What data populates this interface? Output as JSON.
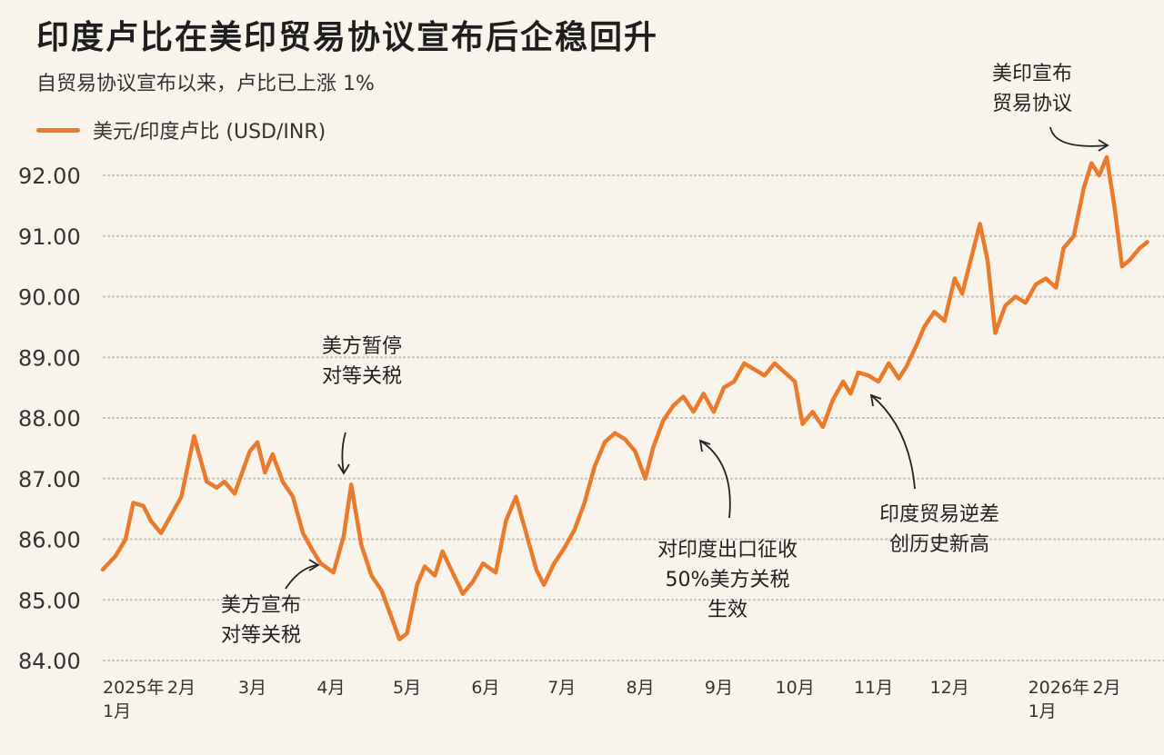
{
  "title": "印度卢比在美印贸易协议宣布后企稳回升",
  "subtitle": "自贸易协议宣布以来，卢比已上涨 1%",
  "colors": {
    "series": "#ea7b2c",
    "grid": "#c9c5bd",
    "background": "#f8f4ec",
    "text": "#222222"
  },
  "chart_data": {
    "type": "line",
    "title": "印度卢比在美印贸易协议宣布后企稳回升",
    "subtitle": "自贸易协议宣布以来，卢比已上涨 1%",
    "legend": {
      "placement": "top-left",
      "entries": [
        "美元/印度卢比 (USD/INR)"
      ]
    },
    "grid": "horizontal",
    "ylim": [
      84.0,
      92.0
    ],
    "yticks": [
      84.0,
      85.0,
      86.0,
      87.0,
      88.0,
      89.0,
      90.0,
      91.0,
      92.0
    ],
    "ytick_labels": [
      "84.00",
      "85.00",
      "86.00",
      "87.00",
      "88.00",
      "89.00",
      "90.00",
      "91.00",
      "92.00"
    ],
    "xlim": [
      "2025-01-01",
      "2026-02-20"
    ],
    "xticks": [
      {
        "date": "2025-01-01",
        "label": [
          "2025年",
          "1月"
        ]
      },
      {
        "date": "2025-02-01",
        "label": [
          "2月"
        ]
      },
      {
        "date": "2025-03-01",
        "label": [
          "3月"
        ]
      },
      {
        "date": "2025-04-01",
        "label": [
          "4月"
        ]
      },
      {
        "date": "2025-05-01",
        "label": [
          "5月"
        ]
      },
      {
        "date": "2025-06-01",
        "label": [
          "6月"
        ]
      },
      {
        "date": "2025-07-01",
        "label": [
          "7月"
        ]
      },
      {
        "date": "2025-08-01",
        "label": [
          "8月"
        ]
      },
      {
        "date": "2025-09-01",
        "label": [
          "9月"
        ]
      },
      {
        "date": "2025-10-01",
        "label": [
          "10月"
        ]
      },
      {
        "date": "2025-11-01",
        "label": [
          "11月"
        ]
      },
      {
        "date": "2025-12-01",
        "label": [
          "12月"
        ]
      },
      {
        "date": "2026-01-01",
        "label": [
          "2026年",
          "1月"
        ]
      },
      {
        "date": "2026-02-01",
        "label": [
          "2月"
        ]
      }
    ],
    "series": [
      {
        "name": "美元/印度卢比 (USD/INR)",
        "points": [
          [
            "2025-01-01",
            85.5
          ],
          [
            "2025-01-06",
            85.72
          ],
          [
            "2025-01-10",
            86.0
          ],
          [
            "2025-01-13",
            86.6
          ],
          [
            "2025-01-17",
            86.55
          ],
          [
            "2025-01-20",
            86.3
          ],
          [
            "2025-01-24",
            86.1
          ],
          [
            "2025-01-28",
            86.4
          ],
          [
            "2025-02-01",
            86.7
          ],
          [
            "2025-02-06",
            87.7
          ],
          [
            "2025-02-08",
            87.4
          ],
          [
            "2025-02-11",
            86.95
          ],
          [
            "2025-02-15",
            86.85
          ],
          [
            "2025-02-18",
            86.95
          ],
          [
            "2025-02-22",
            86.75
          ],
          [
            "2025-02-25",
            87.1
          ],
          [
            "2025-02-28",
            87.45
          ],
          [
            "2025-03-03",
            87.6
          ],
          [
            "2025-03-06",
            87.1
          ],
          [
            "2025-03-09",
            87.4
          ],
          [
            "2025-03-13",
            86.95
          ],
          [
            "2025-03-17",
            86.7
          ],
          [
            "2025-03-21",
            86.1
          ],
          [
            "2025-03-25",
            85.8
          ],
          [
            "2025-03-28",
            85.6
          ],
          [
            "2025-04-02",
            85.45
          ],
          [
            "2025-04-06",
            86.05
          ],
          [
            "2025-04-09",
            86.9
          ],
          [
            "2025-04-13",
            85.9
          ],
          [
            "2025-04-17",
            85.4
          ],
          [
            "2025-04-21",
            85.15
          ],
          [
            "2025-04-25",
            84.7
          ],
          [
            "2025-04-28",
            84.35
          ],
          [
            "2025-05-01",
            84.45
          ],
          [
            "2025-05-05",
            85.25
          ],
          [
            "2025-05-08",
            85.55
          ],
          [
            "2025-05-12",
            85.4
          ],
          [
            "2025-05-15",
            85.8
          ],
          [
            "2025-05-19",
            85.45
          ],
          [
            "2025-05-23",
            85.1
          ],
          [
            "2025-05-27",
            85.3
          ],
          [
            "2025-05-31",
            85.6
          ],
          [
            "2025-06-05",
            85.45
          ],
          [
            "2025-06-09",
            86.3
          ],
          [
            "2025-06-13",
            86.7
          ],
          [
            "2025-06-17",
            86.1
          ],
          [
            "2025-06-21",
            85.5
          ],
          [
            "2025-06-24",
            85.25
          ],
          [
            "2025-06-28",
            85.6
          ],
          [
            "2025-07-02",
            85.85
          ],
          [
            "2025-07-06",
            86.15
          ],
          [
            "2025-07-10",
            86.6
          ],
          [
            "2025-07-14",
            87.2
          ],
          [
            "2025-07-18",
            87.6
          ],
          [
            "2025-07-22",
            87.75
          ],
          [
            "2025-07-26",
            87.65
          ],
          [
            "2025-07-30",
            87.45
          ],
          [
            "2025-08-03",
            87.0
          ],
          [
            "2025-08-06",
            87.5
          ],
          [
            "2025-08-10",
            87.95
          ],
          [
            "2025-08-14",
            88.2
          ],
          [
            "2025-08-18",
            88.35
          ],
          [
            "2025-08-22",
            88.1
          ],
          [
            "2025-08-26",
            88.4
          ],
          [
            "2025-08-30",
            88.1
          ],
          [
            "2025-09-03",
            88.5
          ],
          [
            "2025-09-07",
            88.6
          ],
          [
            "2025-09-11",
            88.9
          ],
          [
            "2025-09-15",
            88.8
          ],
          [
            "2025-09-19",
            88.7
          ],
          [
            "2025-09-23",
            88.9
          ],
          [
            "2025-09-27",
            88.75
          ],
          [
            "2025-10-01",
            88.6
          ],
          [
            "2025-10-04",
            87.9
          ],
          [
            "2025-10-08",
            88.1
          ],
          [
            "2025-10-12",
            87.85
          ],
          [
            "2025-10-16",
            88.3
          ],
          [
            "2025-10-20",
            88.6
          ],
          [
            "2025-10-23",
            88.4
          ],
          [
            "2025-10-26",
            88.75
          ],
          [
            "2025-10-30",
            88.7
          ],
          [
            "2025-11-03",
            88.6
          ],
          [
            "2025-11-07",
            88.9
          ],
          [
            "2025-11-11",
            88.65
          ],
          [
            "2025-11-14",
            88.85
          ],
          [
            "2025-11-18",
            89.2
          ],
          [
            "2025-11-21",
            89.5
          ],
          [
            "2025-11-25",
            89.75
          ],
          [
            "2025-11-29",
            89.6
          ],
          [
            "2025-12-03",
            90.3
          ],
          [
            "2025-12-06",
            90.05
          ],
          [
            "2025-12-09",
            90.55
          ],
          [
            "2025-12-13",
            91.2
          ],
          [
            "2025-12-16",
            90.6
          ],
          [
            "2025-12-19",
            89.4
          ],
          [
            "2025-12-23",
            89.85
          ],
          [
            "2025-12-27",
            90.0
          ],
          [
            "2025-12-31",
            89.9
          ],
          [
            "2026-01-04",
            90.2
          ],
          [
            "2026-01-08",
            90.3
          ],
          [
            "2026-01-12",
            90.15
          ],
          [
            "2026-01-15",
            90.8
          ],
          [
            "2026-01-19",
            91.0
          ],
          [
            "2026-01-23",
            91.8
          ],
          [
            "2026-01-26",
            92.2
          ],
          [
            "2026-01-29",
            92.0
          ],
          [
            "2026-02-01",
            92.3
          ],
          [
            "2026-02-04",
            91.5
          ],
          [
            "2026-02-07",
            90.5
          ],
          [
            "2026-02-10",
            90.6
          ],
          [
            "2026-02-14",
            90.8
          ],
          [
            "2026-02-17",
            90.9
          ]
        ]
      }
    ],
    "annotations": [
      {
        "lines": [
          "美方宣布",
          "对等关税"
        ],
        "date": "2025-04-02"
      },
      {
        "lines": [
          "美方暂停",
          "对等关税"
        ],
        "date": "2025-04-09"
      },
      {
        "lines": [
          "对印度出口征收",
          "50%美方关税",
          "生效"
        ],
        "date": "2025-08-27"
      },
      {
        "lines": [
          "印度贸易逆差",
          "创历史新高"
        ],
        "date": "2025-11-15"
      },
      {
        "lines": [
          "美印宣布",
          "贸易协议"
        ],
        "date": "2026-02-02"
      }
    ]
  }
}
